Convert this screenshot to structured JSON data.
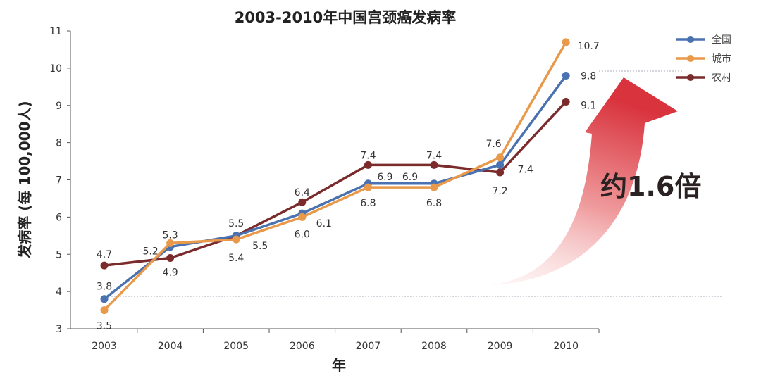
{
  "chart_data": {
    "type": "line",
    "title": "2003-2010年中国宫颈癌发病率",
    "xlabel": "年",
    "ylabel": "发病率 (每 100,000人)",
    "categories": [
      "2003",
      "2004",
      "2005",
      "2006",
      "2007",
      "2008",
      "2009",
      "2010"
    ],
    "ylim": [
      3,
      11
    ],
    "yticks": [
      "3",
      "4",
      "5",
      "6",
      "7",
      "8",
      "9",
      "10",
      "11"
    ],
    "grid": false,
    "legend": "top-right",
    "series": [
      {
        "name": "全国",
        "color": "#4a72b0",
        "values": [
          3.8,
          5.2,
          5.5,
          6.1,
          6.9,
          6.9,
          7.4,
          9.8
        ],
        "labels": [
          "3.8",
          "5.2",
          "5.5",
          "6.1",
          "6.9",
          "6.9",
          "7.4",
          "9.8"
        ]
      },
      {
        "name": "城市",
        "color": "#e8994a",
        "values": [
          3.5,
          5.3,
          5.4,
          6.0,
          6.8,
          6.8,
          7.6,
          10.7
        ],
        "labels": [
          "3.5",
          "5.3",
          "5.4",
          "6.0",
          "6.8",
          "6.8",
          "7.6",
          "10.7"
        ]
      },
      {
        "name": "农村",
        "color": "#7b2b2b",
        "values": [
          4.7,
          4.9,
          5.5,
          6.4,
          7.4,
          7.4,
          7.2,
          9.1
        ],
        "labels": [
          "4.7",
          "4.9",
          "5.5",
          "6.4",
          "7.4",
          "7.4",
          "7.2",
          "9.1"
        ]
      }
    ],
    "annotations": [
      {
        "text": "约1.6倍",
        "arrow_color": "#d9434b"
      }
    ]
  }
}
